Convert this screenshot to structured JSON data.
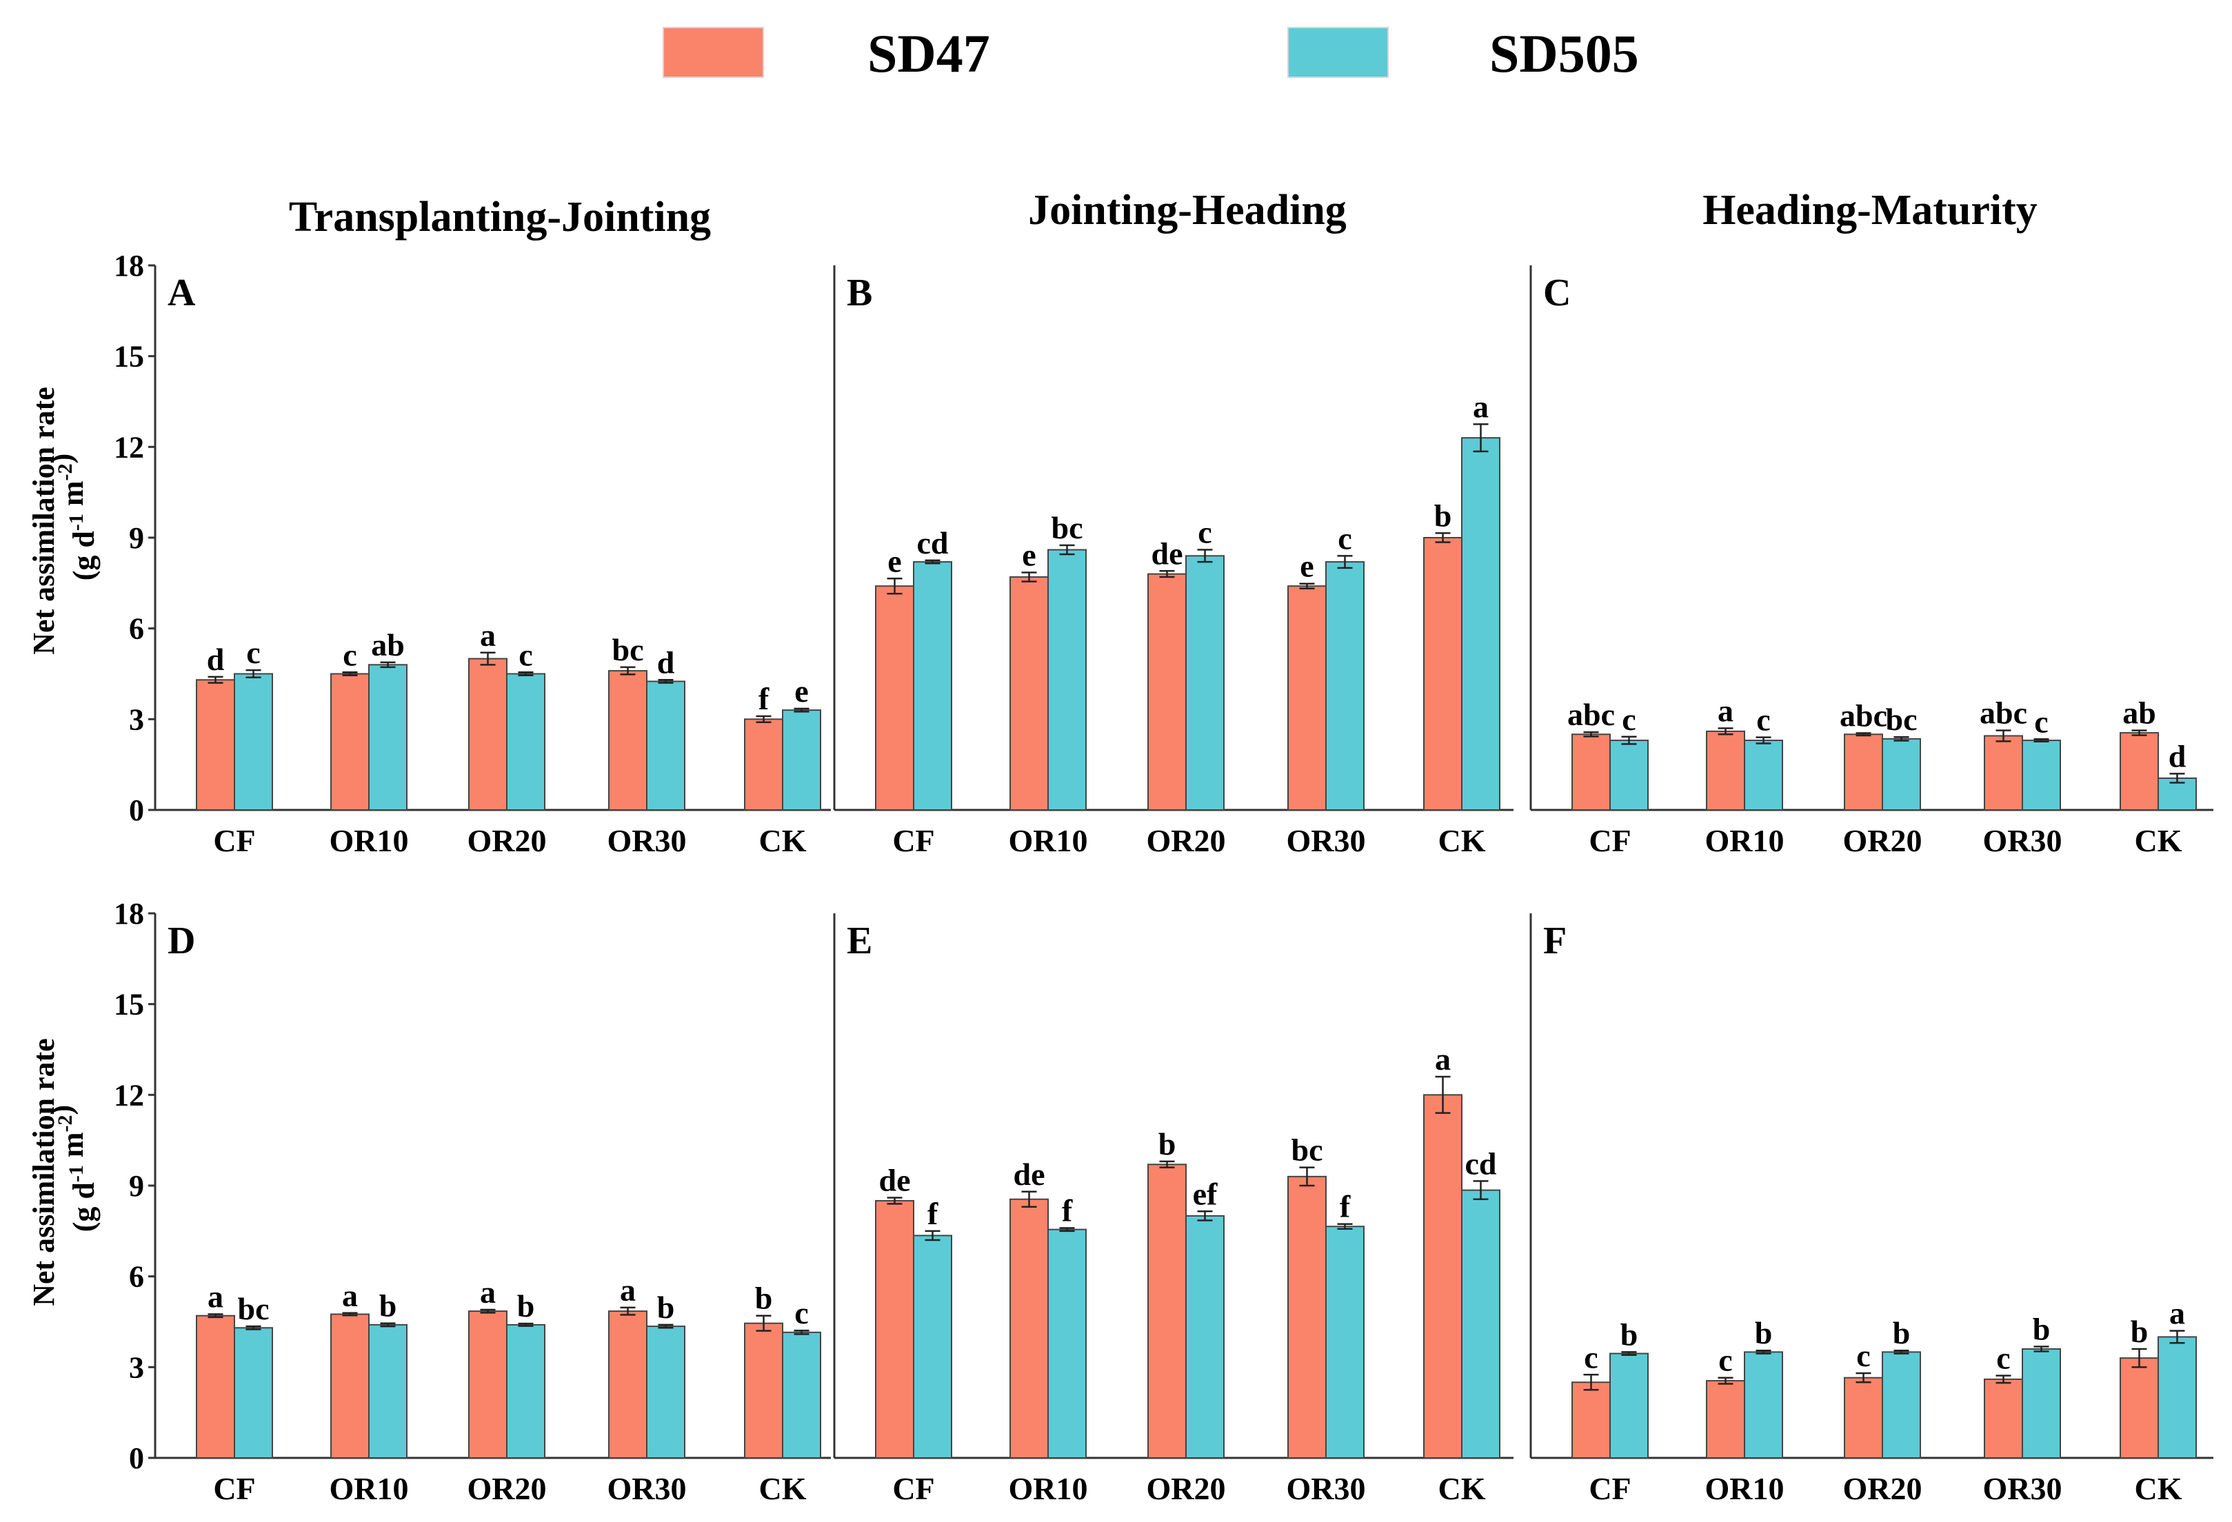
{
  "legend": [
    {
      "name": "SD47",
      "color": "#FA8469"
    },
    {
      "name": "SD505",
      "color": "#5CCBD6"
    }
  ],
  "column_titles": [
    "Transplanting-Jointing",
    "Jointing-Heading",
    "Heading-Maturity"
  ],
  "y_axis_label": "Net assimilation rate",
  "y_axis_unit": "(g d-1 m-2)",
  "chart_data": [
    {
      "type": "bar",
      "panel": "A",
      "column_title": "Transplanting-Jointing",
      "categories": [
        "CF",
        "OR10",
        "OR20",
        "OR30",
        "CK"
      ],
      "ylabel": "Net assimilation rate (g d-1 m-2)",
      "ylim": [
        0,
        18
      ],
      "yticks": [
        0,
        3,
        6,
        9,
        12,
        15,
        18
      ],
      "series": [
        {
          "name": "SD47",
          "values": [
            4.3,
            4.5,
            5.0,
            4.6,
            3.0
          ],
          "errors": [
            0.1,
            0.05,
            0.2,
            0.12,
            0.1
          ],
          "letters": [
            "d",
            "c",
            "a",
            "bc",
            "f"
          ]
        },
        {
          "name": "SD505",
          "values": [
            4.5,
            4.8,
            4.5,
            4.25,
            3.3
          ],
          "errors": [
            0.12,
            0.08,
            0.05,
            0.05,
            0.05
          ],
          "letters": [
            "c",
            "ab",
            "c",
            "d",
            "e"
          ]
        }
      ]
    },
    {
      "type": "bar",
      "panel": "B",
      "column_title": "Jointing-Heading",
      "categories": [
        "CF",
        "OR10",
        "OR20",
        "OR30",
        "CK"
      ],
      "ylabel": "Net assimilation rate (g d-1 m-2)",
      "ylim": [
        0,
        18
      ],
      "yticks": [
        0,
        3,
        6,
        9,
        12,
        15,
        18
      ],
      "series": [
        {
          "name": "SD47",
          "values": [
            7.4,
            7.7,
            7.8,
            7.4,
            9.0
          ],
          "errors": [
            0.25,
            0.15,
            0.1,
            0.08,
            0.15
          ],
          "letters": [
            "e",
            "e",
            "de",
            "e",
            "b"
          ]
        },
        {
          "name": "SD505",
          "values": [
            8.2,
            8.6,
            8.4,
            8.2,
            12.3
          ],
          "errors": [
            0.05,
            0.15,
            0.2,
            0.2,
            0.45
          ],
          "letters": [
            "cd",
            "bc",
            "c",
            "c",
            "a"
          ]
        }
      ]
    },
    {
      "type": "bar",
      "panel": "C",
      "column_title": "Heading-Maturity",
      "categories": [
        "CF",
        "OR10",
        "OR20",
        "OR30",
        "CK"
      ],
      "ylabel": "Net assimilation rate (g d-1 m-2)",
      "ylim": [
        0,
        18
      ],
      "yticks": [
        0,
        3,
        6,
        9,
        12,
        15,
        18
      ],
      "series": [
        {
          "name": "SD47",
          "values": [
            2.5,
            2.6,
            2.5,
            2.45,
            2.55
          ],
          "errors": [
            0.07,
            0.1,
            0.04,
            0.18,
            0.08
          ],
          "letters": [
            "abc",
            "a",
            "abc",
            "abc",
            "ab"
          ]
        },
        {
          "name": "SD505",
          "values": [
            2.3,
            2.3,
            2.35,
            2.3,
            1.05
          ],
          "errors": [
            0.12,
            0.1,
            0.06,
            0.04,
            0.15
          ],
          "letters": [
            "c",
            "c",
            "bc",
            "c",
            "d"
          ]
        }
      ]
    },
    {
      "type": "bar",
      "panel": "D",
      "column_title": "Transplanting-Jointing",
      "categories": [
        "CF",
        "OR10",
        "OR20",
        "OR30",
        "CK"
      ],
      "ylabel": "Net assimilation rate (g d-1 m-2)",
      "ylim": [
        0,
        18
      ],
      "yticks": [
        0,
        3,
        6,
        9,
        12,
        15,
        18
      ],
      "series": [
        {
          "name": "SD47",
          "values": [
            4.7,
            4.75,
            4.85,
            4.85,
            4.45
          ],
          "errors": [
            0.05,
            0.04,
            0.05,
            0.12,
            0.25
          ],
          "letters": [
            "a",
            "a",
            "a",
            "a",
            "b"
          ]
        },
        {
          "name": "SD505",
          "values": [
            4.3,
            4.4,
            4.4,
            4.35,
            4.15
          ],
          "errors": [
            0.05,
            0.05,
            0.04,
            0.05,
            0.06
          ],
          "letters": [
            "bc",
            "b",
            "b",
            "b",
            "c"
          ]
        }
      ]
    },
    {
      "type": "bar",
      "panel": "E",
      "column_title": "Jointing-Heading",
      "categories": [
        "CF",
        "OR10",
        "OR20",
        "OR30",
        "CK"
      ],
      "ylabel": "Net assimilation rate (g d-1 m-2)",
      "ylim": [
        0,
        18
      ],
      "yticks": [
        0,
        3,
        6,
        9,
        12,
        15,
        18
      ],
      "series": [
        {
          "name": "SD47",
          "values": [
            8.5,
            8.55,
            9.7,
            9.3,
            12.0
          ],
          "errors": [
            0.1,
            0.25,
            0.1,
            0.3,
            0.6
          ],
          "letters": [
            "de",
            "de",
            "b",
            "bc",
            "a"
          ]
        },
        {
          "name": "SD505",
          "values": [
            7.35,
            7.55,
            8.0,
            7.65,
            8.85
          ],
          "errors": [
            0.15,
            0.05,
            0.15,
            0.08,
            0.3
          ],
          "letters": [
            "f",
            "f",
            "ef",
            "f",
            "cd"
          ]
        }
      ]
    },
    {
      "type": "bar",
      "panel": "F",
      "column_title": "Heading-Maturity",
      "categories": [
        "CF",
        "OR10",
        "OR20",
        "OR30",
        "CK"
      ],
      "ylabel": "Net assimilation rate (g d-1 m-2)",
      "ylim": [
        0,
        18
      ],
      "yticks": [
        0,
        3,
        6,
        9,
        12,
        15,
        18
      ],
      "series": [
        {
          "name": "SD47",
          "values": [
            2.5,
            2.55,
            2.65,
            2.6,
            3.3
          ],
          "errors": [
            0.25,
            0.1,
            0.15,
            0.12,
            0.3
          ],
          "letters": [
            "c",
            "c",
            "c",
            "c",
            "b"
          ]
        },
        {
          "name": "SD505",
          "values": [
            3.45,
            3.5,
            3.5,
            3.6,
            4.0
          ],
          "errors": [
            0.05,
            0.05,
            0.05,
            0.08,
            0.2
          ],
          "letters": [
            "b",
            "b",
            "b",
            "b",
            "a"
          ]
        }
      ]
    }
  ]
}
